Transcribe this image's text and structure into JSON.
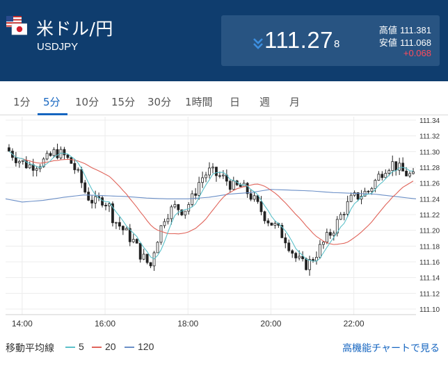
{
  "header": {
    "title": "米ドル/円",
    "code": "USDJPY",
    "flag_icon": "us-jp-flag-icon"
  },
  "quote": {
    "direction_icon": "double-chevron-down-icon",
    "price_main": "111.27",
    "price_small": "8",
    "high_label": "高値",
    "high_value": "111.381",
    "low_label": "安値",
    "low_value": "111.068",
    "change": "+0.068",
    "colors": {
      "panel": "#285482",
      "header": "#0f3d6e",
      "change": "#ff4b5c",
      "arrow": "#3d8fe0"
    }
  },
  "tabs": [
    {
      "label": "1分",
      "active": false
    },
    {
      "label": "5分",
      "active": true
    },
    {
      "label": "10分",
      "active": false
    },
    {
      "label": "15分",
      "active": false
    },
    {
      "label": "30分",
      "active": false
    },
    {
      "label": "1時間",
      "active": false
    },
    {
      "label": "日",
      "active": false
    },
    {
      "label": "週",
      "active": false
    },
    {
      "label": "月",
      "active": false
    }
  ],
  "chart_data": {
    "type": "candlestick",
    "x_ticks": [
      "14:00",
      "16:00",
      "18:00",
      "20:00",
      "22:00"
    ],
    "y_ticks": [
      "111.34",
      "111.32",
      "111.30",
      "111.28",
      "111.26",
      "111.24",
      "111.22",
      "111.20",
      "111.18",
      "111.16",
      "111.14",
      "111.12",
      "111.10"
    ],
    "ylim": [
      111.1,
      111.34
    ],
    "x_range_hours": [
      13.6,
      23.5
    ],
    "grid": true,
    "series": [
      {
        "name": "5",
        "color": "#5bc0c9"
      },
      {
        "name": "20",
        "color": "#e0645a"
      },
      {
        "name": "120",
        "color": "#6b8fc7"
      }
    ],
    "price_anchors": [
      [
        13.6,
        111.305
      ],
      [
        13.9,
        111.29
      ],
      [
        14.15,
        111.282
      ],
      [
        14.4,
        111.285
      ],
      [
        14.6,
        111.29
      ],
      [
        14.8,
        111.3
      ],
      [
        15.0,
        111.295
      ],
      [
        15.2,
        111.285
      ],
      [
        15.4,
        111.265
      ],
      [
        15.55,
        111.245
      ],
      [
        15.75,
        111.235
      ],
      [
        15.95,
        111.24
      ],
      [
        16.1,
        111.23
      ],
      [
        16.2,
        111.215
      ],
      [
        16.45,
        111.2
      ],
      [
        16.7,
        111.185
      ],
      [
        16.85,
        111.17
      ],
      [
        17.0,
        111.16
      ],
      [
        17.1,
        111.155
      ],
      [
        17.2,
        111.18
      ],
      [
        17.45,
        111.22
      ],
      [
        17.7,
        111.23
      ],
      [
        17.9,
        111.225
      ],
      [
        18.1,
        111.24
      ],
      [
        18.3,
        111.265
      ],
      [
        18.5,
        111.275
      ],
      [
        18.7,
        111.27
      ],
      [
        18.9,
        111.265
      ],
      [
        19.1,
        111.255
      ],
      [
        19.3,
        111.255
      ],
      [
        19.5,
        111.245
      ],
      [
        19.7,
        111.23
      ],
      [
        19.9,
        111.215
      ],
      [
        20.1,
        111.205
      ],
      [
        20.35,
        111.19
      ],
      [
        20.6,
        111.165
      ],
      [
        20.8,
        111.155
      ],
      [
        20.95,
        111.16
      ],
      [
        21.15,
        111.175
      ],
      [
        21.35,
        111.19
      ],
      [
        21.55,
        111.205
      ],
      [
        21.75,
        111.225
      ],
      [
        21.95,
        111.24
      ],
      [
        22.15,
        111.245
      ],
      [
        22.35,
        111.25
      ],
      [
        22.55,
        111.265
      ],
      [
        22.75,
        111.28
      ],
      [
        22.95,
        111.285
      ],
      [
        23.15,
        111.275
      ],
      [
        23.35,
        111.27
      ],
      [
        23.5,
        111.265
      ]
    ],
    "ma120_anchors": [
      [
        13.6,
        111.24
      ],
      [
        14.0,
        111.236
      ],
      [
        14.5,
        111.238
      ],
      [
        15.0,
        111.242
      ],
      [
        15.5,
        111.245
      ],
      [
        16.0,
        111.244
      ],
      [
        16.5,
        111.243
      ],
      [
        17.0,
        111.241
      ],
      [
        17.5,
        111.24
      ],
      [
        18.0,
        111.24
      ],
      [
        18.5,
        111.242
      ],
      [
        19.0,
        111.246
      ],
      [
        19.5,
        111.248
      ],
      [
        20.0,
        111.252
      ],
      [
        20.5,
        111.251
      ],
      [
        21.0,
        111.25
      ],
      [
        21.5,
        111.248
      ],
      [
        22.0,
        111.247
      ],
      [
        22.5,
        111.246
      ],
      [
        23.0,
        111.243
      ],
      [
        23.5,
        111.24
      ]
    ]
  },
  "legend": {
    "title": "移動平均線",
    "items": [
      "5",
      "20",
      "120"
    ],
    "link_label": "高機能チャートで見る"
  }
}
